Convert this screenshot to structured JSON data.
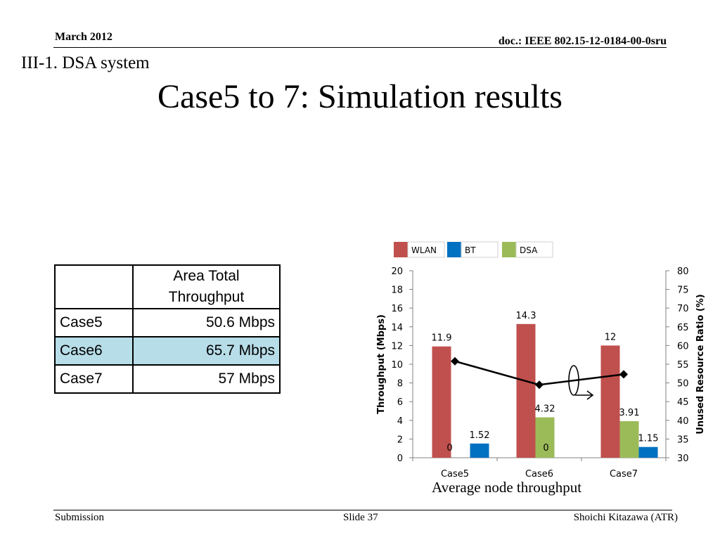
{
  "header": {
    "date": "March 2012",
    "doc": "doc.: IEEE 802.15-12-0184-00-0sru"
  },
  "section": "III-1. DSA system",
  "title": "Case5 to 7: Simulation results",
  "table": {
    "headers": [
      "",
      "Area Total Throughput"
    ],
    "rows": [
      {
        "case": "Case5",
        "value": "50.6 Mbps",
        "highlight": false
      },
      {
        "case": "Case6",
        "value": "65.7 Mbps",
        "highlight": true
      },
      {
        "case": "Case7",
        "value": "57 Mbps",
        "highlight": false
      }
    ]
  },
  "chart_data": {
    "type": "bar",
    "categories": [
      "Case5",
      "Case6",
      "Case7"
    ],
    "series": [
      {
        "name": "WLAN",
        "color": "#c0504d",
        "values": [
          11.9,
          14.3,
          12
        ],
        "labels": [
          "11.9",
          "14.3",
          "12"
        ]
      },
      {
        "name": "DSA",
        "color": "#9bbb59",
        "values": [
          0,
          4.32,
          3.91
        ],
        "labels": [
          "0",
          "4.32",
          "3.91"
        ]
      },
      {
        "name": "BT",
        "color": "#0070c0",
        "values": [
          1.52,
          0,
          1.15
        ],
        "labels": [
          "1.52",
          "0",
          "1.15"
        ]
      }
    ],
    "legend_order": [
      "WLAN",
      "BT",
      "DSA"
    ],
    "legend_position": "top",
    "line_series": {
      "axis": "right",
      "color": "#000000",
      "values": [
        55.8,
        49.5,
        52.3
      ]
    },
    "ylabel": "Throughput (Mbps)",
    "ylim": [
      0,
      20
    ],
    "yticks": [
      "0",
      "2",
      "4",
      "6",
      "8",
      "10",
      "12",
      "14",
      "16",
      "18",
      "20"
    ],
    "y2label": "Unused Resource Ratio (%)",
    "y2lim": [
      30,
      80
    ],
    "y2ticks": [
      "30",
      "35",
      "40",
      "45",
      "50",
      "55",
      "60",
      "65",
      "70",
      "75",
      "80"
    ],
    "grid": false,
    "caption": "Average node throughput"
  },
  "footer": {
    "left": "Submission",
    "center": "Slide 37",
    "right": "Shoichi Kitazawa (ATR)"
  }
}
